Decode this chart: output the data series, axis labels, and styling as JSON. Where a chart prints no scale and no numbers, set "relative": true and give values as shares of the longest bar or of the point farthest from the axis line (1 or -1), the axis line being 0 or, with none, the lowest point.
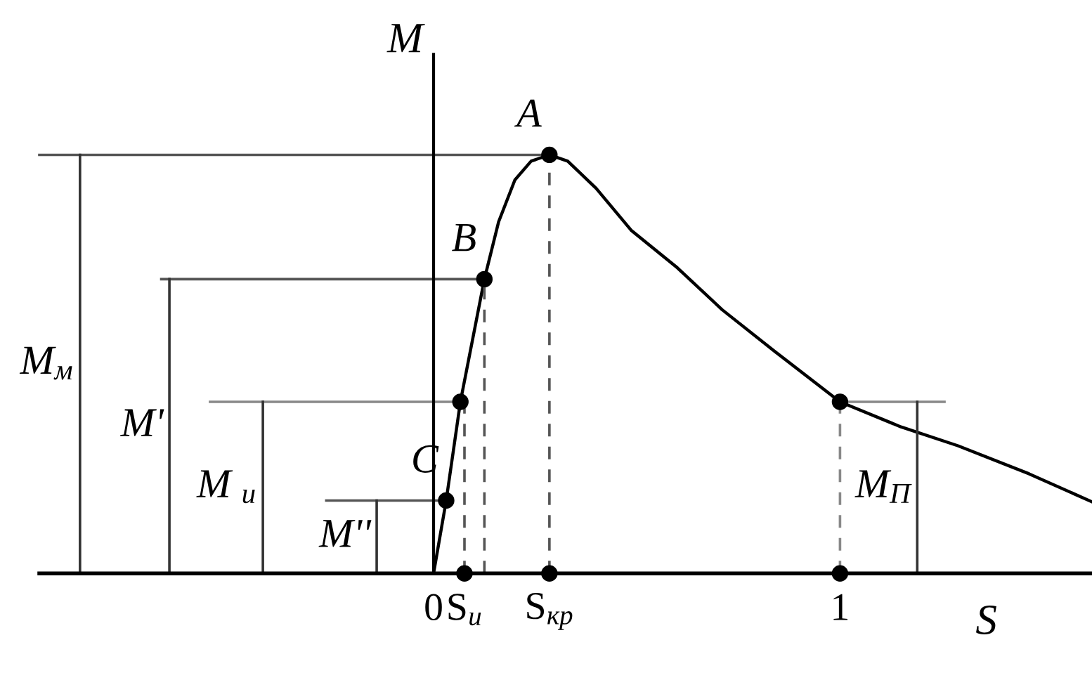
{
  "chart_data": {
    "type": "line",
    "relative": true,
    "xlabel": "S",
    "ylabel": "M",
    "xlim": [
      -0.97,
      1.62
    ],
    "xticks": [
      0,
      {
        "value": 0.076,
        "label": "S$_{и}$"
      },
      {
        "value": 0.285,
        "label": "S$_{кр}$"
      },
      1
    ],
    "tick_labels": "x",
    "grid": false,
    "series": [
      {
        "color": "#000000",
        "line_style": "solid",
        "x": [
          0,
          0.031,
          0.066,
          0.125,
          0.16,
          0.2,
          0.24,
          0.285,
          0.33,
          0.4,
          0.486,
          0.6,
          0.71,
          0.84,
          1.0,
          1.15,
          1.29,
          1.465,
          1.62
        ],
        "values": [
          0,
          0.174,
          0.41,
          0.703,
          0.84,
          0.94,
          0.985,
          1,
          0.985,
          0.92,
          0.82,
          0.73,
          0.63,
          0.53,
          0.41,
          0.35,
          0.305,
          0.238,
          0.171
        ]
      },
      {
        "type": "scatter",
        "color": "#000000",
        "marker": "circle",
        "x": [
          0.031,
          0.066,
          0.125,
          0.285,
          1.0,
          0.076,
          0.285,
          1.0
        ],
        "values": [
          0.174,
          0.41,
          0.703,
          1,
          0.41,
          0,
          0,
          0
        ]
      },
      {
        "type": "line",
        "color": "#555555",
        "line_style": "solid",
        "x": [
          -0.97,
          0.285
        ],
        "values": [
          1,
          1
        ]
      },
      {
        "type": "line",
        "color": "#555555",
        "line_style": "solid",
        "x": [
          -0.67,
          0.125
        ],
        "values": [
          0.703,
          0.703
        ]
      },
      {
        "type": "line",
        "color": "#888888",
        "line_style": "solid",
        "x": [
          -0.55,
          0.066
        ],
        "values": [
          0.41,
          0.41
        ]
      },
      {
        "type": "line",
        "color": "#555555",
        "line_style": "solid",
        "x": [
          -0.264,
          0.031
        ],
        "values": [
          0.174,
          0.174
        ]
      },
      {
        "type": "line",
        "color": "#888888",
        "line_style": "solid",
        "x": [
          1.0,
          1.257
        ],
        "values": [
          0.41,
          0.41
        ]
      },
      {
        "name": "M$_{м}$",
        "color": "#333333",
        "line_style": "solid",
        "x": [
          -0.87,
          -0.87
        ],
        "values": [
          0,
          1
        ]
      },
      {
        "name": "M'",
        "color": "#333333",
        "line_style": "solid",
        "x": [
          -0.65,
          -0.65
        ],
        "values": [
          0,
          0.703
        ]
      },
      {
        "name": "M $_{и}$",
        "color": "#333333",
        "line_style": "solid",
        "x": [
          -0.42,
          -0.42
        ],
        "values": [
          0,
          0.41
        ]
      },
      {
        "name": "M''",
        "color": "#333333",
        "line_style": "solid",
        "x": [
          -0.14,
          -0.14
        ],
        "values": [
          0,
          0.174
        ]
      },
      {
        "name": "M$_{П}$",
        "color": "#333333",
        "line_style": "solid",
        "x": [
          1.19,
          1.19
        ],
        "values": [
          0,
          0.41
        ]
      },
      {
        "type": "line",
        "color": "#555555",
        "line_style": "dashed",
        "x": [
          0.076,
          0.076
        ],
        "values": [
          0,
          0.41
        ]
      },
      {
        "type": "line",
        "color": "#555555",
        "line_style": "dashed",
        "x": [
          0.125,
          0.125
        ],
        "values": [
          0,
          0.703
        ]
      },
      {
        "type": "line",
        "color": "#555555",
        "line_style": "dashed",
        "x": [
          0.285,
          0.285
        ],
        "values": [
          0,
          1
        ]
      },
      {
        "type": "line",
        "color": "#888888",
        "line_style": "dashed",
        "x": [
          1.0,
          1.0
        ],
        "values": [
          0,
          0.41
        ]
      }
    ],
    "annotations": [
      {
        "text": "A",
        "x": 0.285,
        "y": 1
      },
      {
        "text": "B",
        "x": 0.125,
        "y": 0.703
      },
      {
        "text": "C",
        "x": 0.031,
        "y": 0.174
      }
    ]
  }
}
